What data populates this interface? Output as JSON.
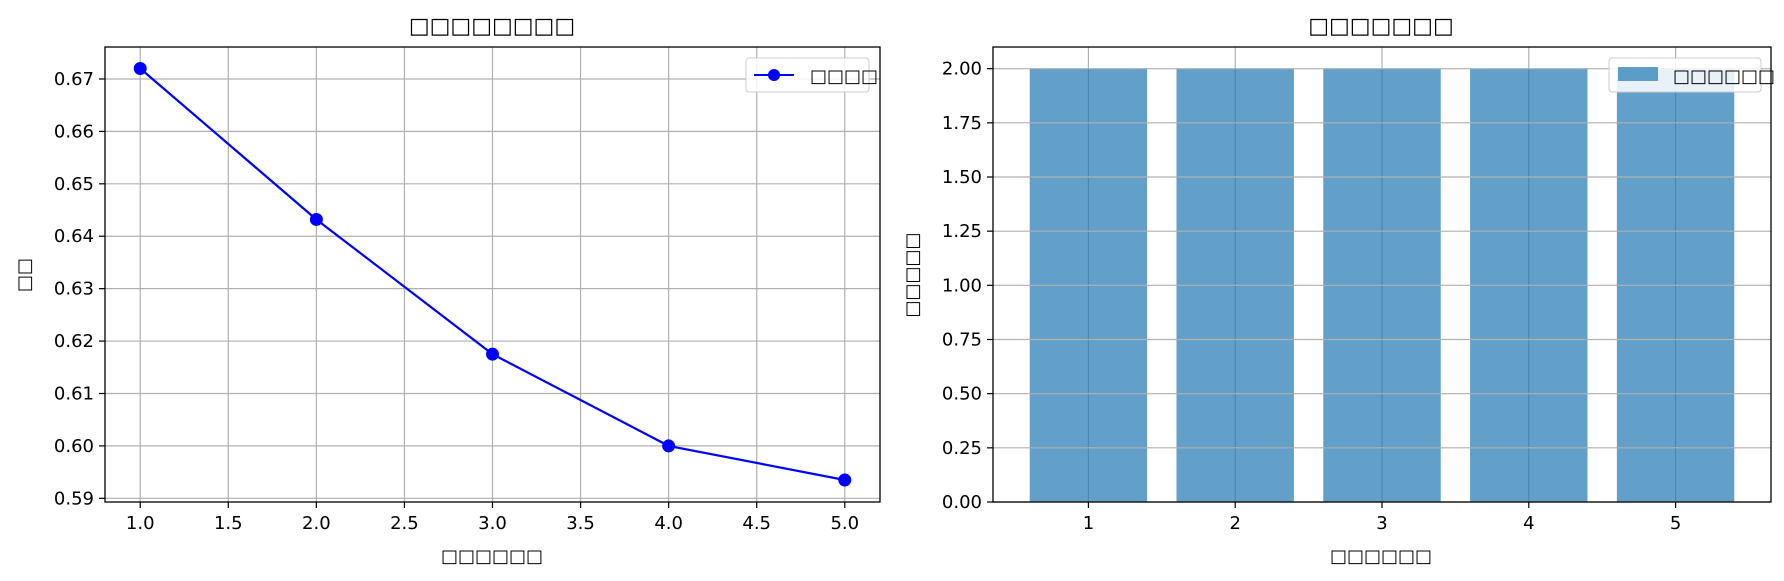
{
  "chart_data": [
    {
      "type": "line",
      "title": "□□□□□□□□",
      "xlabel": "□□□□□□",
      "ylabel": "□□",
      "x": [
        1.0,
        2.0,
        3.0,
        4.0,
        5.0
      ],
      "series": [
        {
          "name": "□□□□",
          "values": [
            0.672,
            0.6432,
            0.6175,
            0.6,
            0.5935
          ],
          "color": "#0000ff",
          "marker": "circle"
        }
      ],
      "xlim": [
        0.8,
        5.2
      ],
      "ylim": [
        0.5893,
        0.6761
      ],
      "xticks": [
        1.0,
        1.5,
        2.0,
        2.5,
        3.0,
        3.5,
        4.0,
        4.5,
        5.0
      ],
      "xtick_labels": [
        "1.0",
        "1.5",
        "2.0",
        "2.5",
        "3.0",
        "3.5",
        "4.0",
        "4.5",
        "5.0"
      ],
      "yticks": [
        0.59,
        0.6,
        0.61,
        0.62,
        0.63,
        0.64,
        0.65,
        0.66,
        0.67
      ],
      "ytick_labels": [
        "0.59",
        "0.60",
        "0.61",
        "0.62",
        "0.63",
        "0.64",
        "0.65",
        "0.66",
        "0.67"
      ],
      "grid": true,
      "legend_position": "top-right"
    },
    {
      "type": "bar",
      "title": "□□□□□□□",
      "xlabel": "□□□□□□",
      "ylabel": "□□□□□",
      "categories": [
        "1",
        "2",
        "3",
        "4",
        "5"
      ],
      "series": [
        {
          "name": "□□□□□□",
          "values": [
            2,
            2,
            2,
            2,
            2
          ],
          "color": "#1f77b4"
        }
      ],
      "ylim": [
        0,
        2.1
      ],
      "yticks": [
        0.0,
        0.25,
        0.5,
        0.75,
        1.0,
        1.25,
        1.5,
        1.75,
        2.0
      ],
      "ytick_labels": [
        "0.00",
        "0.25",
        "0.50",
        "0.75",
        "1.00",
        "1.25",
        "1.50",
        "1.75",
        "2.00"
      ],
      "bar_opacity": 0.7,
      "grid": true,
      "legend_position": "top-right"
    }
  ]
}
